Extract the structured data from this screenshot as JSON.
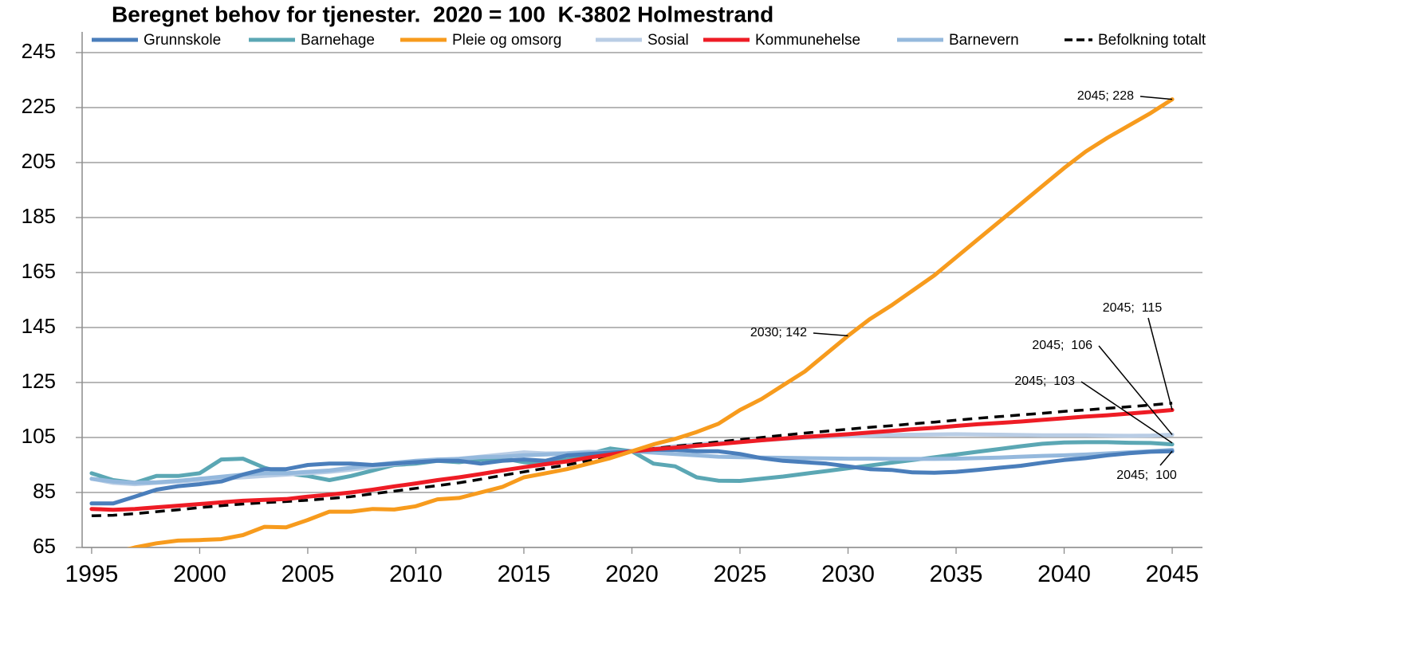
{
  "chart_data": {
    "type": "line",
    "title": "Beregnet behov for tjenester.  2020 = 100  K-3802 Holmestrand",
    "x": [
      1995,
      1996,
      1997,
      1998,
      1999,
      2000,
      2001,
      2002,
      2003,
      2004,
      2005,
      2006,
      2007,
      2008,
      2009,
      2010,
      2011,
      2012,
      2013,
      2014,
      2015,
      2016,
      2017,
      2018,
      2019,
      2020,
      2021,
      2022,
      2023,
      2024,
      2025,
      2026,
      2027,
      2028,
      2029,
      2030,
      2031,
      2032,
      2033,
      2034,
      2035,
      2036,
      2037,
      2038,
      2039,
      2040,
      2041,
      2042,
      2043,
      2044,
      2045
    ],
    "xlim": [
      1994.56,
      2046.4
    ],
    "xticks": [
      1995,
      2000,
      2005,
      2010,
      2015,
      2020,
      2025,
      2030,
      2035,
      2040,
      2045
    ],
    "ylim": [
      65,
      245
    ],
    "yticks": [
      65,
      85,
      105,
      125,
      145,
      165,
      185,
      205,
      225,
      245
    ],
    "grid": true,
    "legend": "top",
    "series": [
      {
        "name": "Grunnskole",
        "color": "#4a7ebb",
        "values": [
          81,
          81,
          83.5,
          86,
          87.3,
          88,
          89,
          91.5,
          93.5,
          93.5,
          95,
          95.5,
          95.5,
          95,
          95.5,
          96,
          96.5,
          96.5,
          95.5,
          96.5,
          97,
          96.5,
          98.5,
          99,
          99.5,
          100,
          100.5,
          100.5,
          100,
          100,
          99,
          97.5,
          96.5,
          96,
          95.5,
          94.5,
          93.5,
          93.2,
          92.3,
          92.2,
          92.5,
          93.2,
          94,
          94.7,
          95.8,
          96.8,
          97.5,
          98.5,
          99.3,
          99.8,
          100
        ]
      },
      {
        "name": "Barnehage",
        "color": "#5ba7b4",
        "values": [
          92,
          89.5,
          88.5,
          91,
          91,
          92,
          97,
          97.3,
          94,
          92,
          91,
          89.5,
          91,
          93,
          95,
          95.5,
          96.5,
          96,
          97,
          97.5,
          96,
          95.5,
          97,
          99,
          101,
          100,
          95.5,
          94.5,
          90.5,
          89.3,
          89.2,
          90,
          90.8,
          91.8,
          92.8,
          93.8,
          94.8,
          95.8,
          96.8,
          97.8,
          98.8,
          99.8,
          100.8,
          101.8,
          102.7,
          103.2,
          103.3,
          103.3,
          103.1,
          103,
          102.5
        ]
      },
      {
        "name": "Pleie og omsorg",
        "color": "#f79b1d",
        "values": [
          61.5,
          63,
          65,
          66.5,
          67.5,
          67.7,
          68,
          69.5,
          72.5,
          72.3,
          75,
          78,
          78,
          79,
          78.8,
          80,
          82.5,
          83,
          85,
          87,
          90.5,
          92,
          93.5,
          95.5,
          97.5,
          100,
          102.5,
          104.5,
          107,
          110,
          115,
          119,
          124,
          129,
          135.5,
          142,
          148,
          153,
          158.5,
          164,
          170.5,
          177,
          183.5,
          190,
          196.5,
          203,
          209,
          214,
          218.5,
          223,
          228
        ]
      },
      {
        "name": "Sosial",
        "color": "#b9cde5",
        "values": [
          90,
          88.5,
          88,
          88.5,
          89,
          89.5,
          90,
          90.5,
          91,
          91.5,
          92,
          92.5,
          93.3,
          94.3,
          95.3,
          96,
          96.8,
          97.3,
          98,
          98.8,
          99.6,
          99.2,
          99.3,
          99.8,
          99.6,
          100,
          101,
          101.8,
          102.5,
          103,
          103.5,
          104,
          104.5,
          104.9,
          105.2,
          105.5,
          105.7,
          105.9,
          106,
          106.1,
          106.2,
          106.1,
          106,
          105.9,
          105.8,
          105.8,
          105.8,
          105.7,
          105.6,
          105.7,
          106
        ]
      },
      {
        "name": "Kommunehelse",
        "color": "#ee1c25",
        "values": [
          79,
          78.7,
          79,
          79.6,
          80.2,
          80.8,
          81.4,
          82,
          82.3,
          82.6,
          83.5,
          84.2,
          85,
          86,
          87.2,
          88.3,
          89.5,
          90.5,
          91.7,
          93,
          94.2,
          95.3,
          96.3,
          97.7,
          98.8,
          100,
          100.7,
          101.3,
          102,
          102.6,
          103.3,
          104,
          104.6,
          105.2,
          105.7,
          106.2,
          106.8,
          107.4,
          108,
          108.5,
          109.2,
          109.8,
          110.3,
          110.8,
          111.4,
          112,
          112.6,
          113.1,
          113.7,
          114.3,
          115
        ]
      },
      {
        "name": "Barnevern",
        "color": "#95b9dd",
        "values": [
          90,
          89,
          88.5,
          88.7,
          89.2,
          90,
          90.7,
          91.5,
          92,
          92,
          92.5,
          93,
          94,
          95,
          95.8,
          96.5,
          97,
          97.2,
          97.8,
          98,
          98.5,
          98.8,
          99.2,
          99.5,
          99.8,
          100,
          99.5,
          99,
          98.5,
          98,
          97.8,
          97.7,
          97.6,
          97.5,
          97.4,
          97.3,
          97.3,
          97.2,
          97.2,
          97.2,
          97.3,
          97.5,
          97.7,
          98,
          98.3,
          98.5,
          98.8,
          99.2,
          99.6,
          100,
          100.5
        ]
      },
      {
        "name": "Befolkning totalt",
        "color": "#000000",
        "style": "dashed",
        "values": [
          76.5,
          76.7,
          77.3,
          78,
          78.7,
          79.5,
          80.2,
          80.8,
          81.3,
          81.7,
          82.2,
          82.8,
          83.5,
          84.5,
          85.5,
          86.5,
          87.5,
          88.5,
          89.8,
          91.2,
          92.5,
          93.8,
          95,
          96.7,
          98.3,
          100,
          101,
          101.8,
          102.6,
          103.4,
          104.2,
          105,
          105.8,
          106.6,
          107.3,
          108,
          108.7,
          109.3,
          110,
          110.6,
          111.3,
          112,
          112.6,
          113.2,
          113.8,
          114.5,
          115,
          115.6,
          116.2,
          116.8,
          117.5
        ]
      }
    ],
    "annotations": [
      {
        "text": "2045; 228",
        "x": 2045,
        "y": 228
      },
      {
        "text": "2030; 142",
        "x": 2030,
        "y": 142
      },
      {
        "text": "2045;  115",
        "x": 2045,
        "y": 115
      },
      {
        "text": "2045;  106",
        "x": 2045,
        "y": 106
      },
      {
        "text": "2045;  103",
        "x": 2045,
        "y": 103
      },
      {
        "text": "2045;  100",
        "x": 2045,
        "y": 100
      }
    ]
  }
}
